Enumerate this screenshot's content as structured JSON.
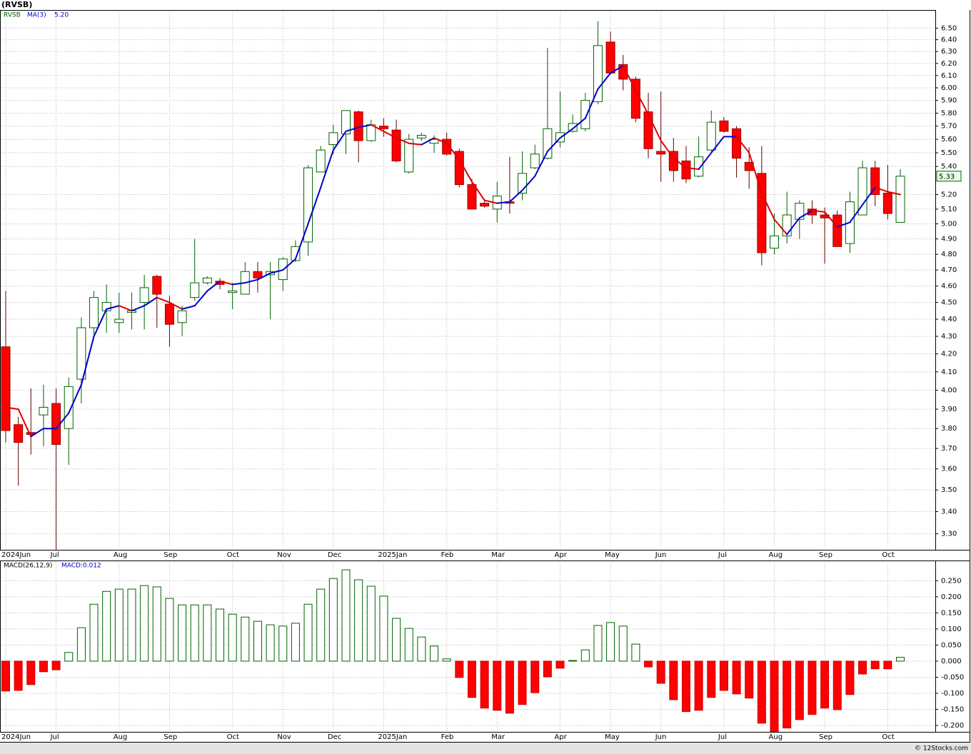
{
  "header": {
    "title": "(RVSB)"
  },
  "footer": {
    "text": "© 12Stocks.com"
  },
  "chart_data": [
    {
      "type": "candlestick",
      "symbol": "RVSB",
      "ma_name": "MA(3)",
      "ma_value_label": "5.20",
      "categories": [
        "2024Jun",
        null,
        null,
        null,
        "Jul",
        null,
        null,
        null,
        null,
        "Aug",
        null,
        null,
        null,
        "Sep",
        null,
        null,
        null,
        null,
        "Oct",
        null,
        null,
        null,
        "Nov",
        null,
        null,
        null,
        "Dec",
        null,
        null,
        null,
        "2025Jan",
        null,
        null,
        null,
        null,
        "Feb",
        null,
        null,
        null,
        "Mar",
        null,
        null,
        null,
        null,
        "Apr",
        null,
        null,
        null,
        "May",
        null,
        null,
        null,
        "Jun",
        null,
        null,
        null,
        null,
        "Jul",
        null,
        null,
        null,
        "Aug",
        null,
        null,
        null,
        "Sep",
        null,
        null,
        null,
        null,
        "Oct",
        null
      ],
      "open": [
        4.24,
        3.82,
        3.78,
        3.87,
        3.93,
        3.8,
        4.06,
        4.35,
        4.45,
        4.38,
        4.44,
        4.5,
        4.66,
        4.49,
        4.38,
        4.53,
        4.62,
        4.63,
        4.56,
        4.55,
        4.69,
        4.67,
        4.64,
        4.76,
        4.88,
        5.36,
        5.56,
        5.64,
        5.81,
        5.59,
        5.7,
        5.67,
        5.36,
        5.61,
        5.57,
        5.6,
        5.51,
        5.27,
        5.14,
        5.1,
        5.15,
        5.21,
        5.39,
        5.46,
        5.58,
        5.66,
        5.68,
        5.89,
        6.38,
        6.19,
        6.07,
        5.81,
        5.51,
        5.51,
        5.44,
        5.33,
        5.52,
        5.74,
        5.68,
        5.43,
        5.35,
        4.84,
        4.92,
        5.03,
        5.1,
        5.06,
        5.06,
        4.87,
        5.06,
        5.39,
        5.21,
        5.01
      ],
      "high": [
        4.57,
        3.86,
        4.01,
        4.03,
        4.01,
        4.07,
        4.41,
        4.57,
        4.61,
        4.56,
        4.56,
        4.67,
        4.67,
        4.54,
        4.48,
        4.9,
        4.66,
        4.65,
        4.62,
        4.75,
        4.75,
        4.75,
        4.78,
        4.89,
        5.41,
        5.55,
        5.71,
        5.82,
        5.82,
        5.75,
        5.76,
        5.75,
        5.64,
        5.65,
        5.63,
        5.65,
        5.53,
        5.31,
        5.17,
        5.29,
        5.47,
        5.51,
        5.56,
        6.33,
        5.97,
        5.79,
        5.96,
        6.56,
        6.47,
        6.27,
        6.09,
        5.96,
        5.97,
        5.61,
        5.55,
        5.62,
        5.82,
        5.77,
        5.7,
        5.54,
        5.55,
        5.07,
        5.22,
        5.16,
        5.16,
        5.11,
        5.09,
        5.22,
        5.44,
        5.44,
        5.41,
        5.38
      ],
      "low": [
        3.73,
        3.52,
        3.67,
        3.71,
        3.23,
        3.62,
        3.93,
        4.31,
        4.32,
        4.32,
        4.34,
        4.34,
        4.35,
        4.24,
        4.3,
        4.51,
        4.61,
        4.58,
        4.46,
        4.55,
        4.56,
        4.4,
        4.57,
        4.75,
        4.79,
        5.36,
        5.49,
        5.49,
        5.43,
        5.58,
        5.62,
        5.43,
        5.35,
        5.59,
        5.5,
        5.48,
        5.25,
        5.1,
        5.11,
        5.01,
        5.07,
        5.16,
        5.38,
        5.45,
        5.54,
        5.65,
        5.66,
        5.87,
        6.11,
        5.98,
        5.73,
        5.46,
        5.29,
        5.29,
        5.28,
        5.32,
        5.51,
        5.65,
        5.32,
        5.24,
        4.73,
        4.8,
        4.87,
        4.9,
        5.0,
        4.74,
        4.85,
        4.81,
        5.06,
        5.12,
        5.03,
        5.01
      ],
      "close": [
        3.79,
        3.73,
        3.77,
        3.91,
        3.72,
        4.02,
        4.35,
        4.53,
        4.5,
        4.4,
        4.45,
        4.59,
        4.55,
        4.37,
        4.45,
        4.62,
        4.65,
        4.61,
        4.57,
        4.69,
        4.65,
        4.69,
        4.77,
        4.85,
        5.39,
        5.52,
        5.65,
        5.82,
        5.59,
        5.71,
        5.68,
        5.44,
        5.6,
        5.63,
        5.6,
        5.49,
        5.27,
        5.1,
        5.12,
        5.19,
        5.14,
        5.35,
        5.49,
        5.68,
        5.65,
        5.72,
        5.9,
        6.35,
        6.12,
        6.07,
        5.76,
        5.53,
        5.49,
        5.37,
        5.31,
        5.47,
        5.73,
        5.66,
        5.46,
        5.37,
        4.81,
        4.92,
        5.06,
        5.14,
        5.06,
        5.04,
        4.85,
        5.15,
        5.39,
        5.2,
        5.07,
        5.33
      ],
      "ma3": [
        3.91,
        3.9,
        3.76,
        3.8,
        3.8,
        3.88,
        4.03,
        4.3,
        4.46,
        4.48,
        4.45,
        4.48,
        4.53,
        4.5,
        4.46,
        4.48,
        4.57,
        4.63,
        4.61,
        4.62,
        4.64,
        4.68,
        4.7,
        4.77,
        5.0,
        5.25,
        5.52,
        5.66,
        5.69,
        5.71,
        5.66,
        5.61,
        5.57,
        5.56,
        5.61,
        5.57,
        5.45,
        5.29,
        5.16,
        5.14,
        5.15,
        5.23,
        5.33,
        5.51,
        5.61,
        5.68,
        5.76,
        5.99,
        6.12,
        6.18,
        5.98,
        5.79,
        5.59,
        5.46,
        5.39,
        5.38,
        5.5,
        5.62,
        5.62,
        5.5,
        5.21,
        5.03,
        4.93,
        5.04,
        5.09,
        5.08,
        4.98,
        5.01,
        5.13,
        5.25,
        5.22,
        5.2
      ],
      "ylim": [
        3.23,
        6.66
      ],
      "log_scale": true,
      "grid": true,
      "yticks": [
        {
          "value": 3.3,
          "label": "3.30"
        },
        {
          "value": 3.4,
          "label": "3.40"
        },
        {
          "value": 3.5,
          "label": "3.50"
        },
        {
          "value": 3.6,
          "label": "3.60"
        },
        {
          "value": 3.7,
          "label": "3.70"
        },
        {
          "value": 3.8,
          "label": "3.80"
        },
        {
          "value": 3.9,
          "label": "3.90"
        },
        {
          "value": 4.0,
          "label": "4.00"
        },
        {
          "value": 4.1,
          "label": "4.10"
        },
        {
          "value": 4.2,
          "label": "4.20"
        },
        {
          "value": 4.3,
          "label": "4.30"
        },
        {
          "value": 4.4,
          "label": "4.40"
        },
        {
          "value": 4.5,
          "label": "4.50"
        },
        {
          "value": 4.6,
          "label": "4.60"
        },
        {
          "value": 4.7,
          "label": "4.70"
        },
        {
          "value": 4.8,
          "label": "4.80"
        },
        {
          "value": 4.9,
          "label": "4.90"
        },
        {
          "value": 5.0,
          "label": "5.00"
        },
        {
          "value": 5.1,
          "label": "5.10"
        },
        {
          "value": 5.2,
          "label": "5.20"
        },
        {
          "value": 5.4,
          "label": "5.40"
        },
        {
          "value": 5.5,
          "label": "5.50"
        },
        {
          "value": 5.6,
          "label": "5.60"
        },
        {
          "value": 5.7,
          "label": "5.70"
        },
        {
          "value": 5.8,
          "label": "5.80"
        },
        {
          "value": 5.9,
          "label": "5.90"
        },
        {
          "value": 6.0,
          "label": "6.00"
        },
        {
          "value": 6.1,
          "label": "6.10"
        },
        {
          "value": 6.2,
          "label": "6.20"
        },
        {
          "value": 6.3,
          "label": "6.30"
        },
        {
          "value": 6.4,
          "label": "6.40"
        },
        {
          "value": 6.5,
          "label": "6.50"
        }
      ],
      "up_color": "#006400",
      "down_color": "#ff0000",
      "ma_up_color": "#0000cc",
      "ma_down_color": "#e00000"
    },
    {
      "type": "bar",
      "title": "MACD(26,12,9)",
      "value_label": "MACD:0.012",
      "values": [
        -0.093,
        -0.091,
        -0.073,
        -0.033,
        -0.027,
        0.027,
        0.104,
        0.177,
        0.217,
        0.224,
        0.224,
        0.235,
        0.231,
        0.195,
        0.175,
        0.175,
        0.175,
        0.162,
        0.146,
        0.137,
        0.124,
        0.113,
        0.109,
        0.118,
        0.177,
        0.224,
        0.257,
        0.284,
        0.253,
        0.233,
        0.202,
        0.133,
        0.102,
        0.075,
        0.047,
        0.007,
        -0.051,
        -0.113,
        -0.146,
        -0.153,
        -0.162,
        -0.135,
        -0.098,
        -0.049,
        -0.022,
        0.002,
        0.035,
        0.111,
        0.12,
        0.109,
        0.053,
        -0.018,
        -0.069,
        -0.12,
        -0.157,
        -0.153,
        -0.113,
        -0.091,
        -0.102,
        -0.115,
        -0.193,
        -0.22,
        -0.208,
        -0.182,
        -0.166,
        -0.146,
        -0.151,
        -0.104,
        -0.04,
        -0.024,
        -0.024,
        0.012
      ],
      "ylim": [
        -0.22,
        0.313
      ],
      "grid": true,
      "yticks": [
        {
          "value": -0.2,
          "label": "-0.200"
        },
        {
          "value": -0.15,
          "label": "-0.150"
        },
        {
          "value": -0.1,
          "label": "-0.100"
        },
        {
          "value": -0.05,
          "label": "-0.050"
        },
        {
          "value": 0,
          "label": "0.000"
        },
        {
          "value": 0.05,
          "label": "0.050"
        },
        {
          "value": 0.1,
          "label": "0.100"
        },
        {
          "value": 0.15,
          "label": "0.150"
        },
        {
          "value": 0.2,
          "label": "0.200"
        },
        {
          "value": 0.25,
          "label": "0.250"
        }
      ],
      "up_color": "#006400",
      "down_color": "#ff0000"
    }
  ]
}
